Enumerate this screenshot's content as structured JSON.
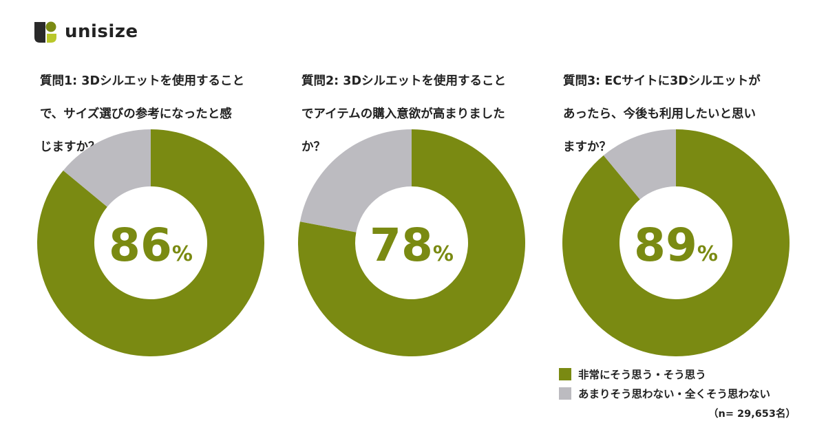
{
  "brand": {
    "name": "unisize",
    "logo_icon": "unisize-logo-icon"
  },
  "colors": {
    "agree": "#7a8a12",
    "disagree": "#bcbbc0",
    "text": "#222222"
  },
  "chart_data": [
    {
      "type": "pie",
      "title": "質問1: 3Dシルエットを使用することで、サイズ選びの参考になったと感じますか？",
      "title_lines": [
        "質問1: 3Dシルエットを使用すること",
        "で、サイズ選びの参考になったと感",
        "じますか？"
      ],
      "categories": [
        "非常にそう思う・そう思う",
        "あまりそう思わない・全くそう思わない"
      ],
      "values": [
        86,
        14
      ],
      "center_label": {
        "value": "86",
        "unit": "%"
      }
    },
    {
      "type": "pie",
      "title": "質問2: 3Dシルエットを使用することでアイテムの購入意欲が高まりましたか？",
      "title_lines": [
        "質問2: 3Dシルエットを使用すること",
        "でアイテムの購入意欲が高まりました",
        "か？"
      ],
      "categories": [
        "非常にそう思う・そう思う",
        "あまりそう思わない・全くそう思わない"
      ],
      "values": [
        78,
        22
      ],
      "center_label": {
        "value": "78",
        "unit": "%"
      }
    },
    {
      "type": "pie",
      "title": "質問3: ECサイトに3Dシルエットがあったら、今後も利用したいと思いますか？",
      "title_lines": [
        "質問3: ECサイトに3Dシルエットが",
        "あったら、今後も利用したいと思い",
        "ますか？"
      ],
      "categories": [
        "非常にそう思う・そう思う",
        "あまりそう思わない・全くそう思わない"
      ],
      "values": [
        89,
        11
      ],
      "center_label": {
        "value": "89",
        "unit": "%"
      }
    }
  ],
  "legend": {
    "placement": "bottom-right",
    "items": [
      {
        "label": "非常にそう思う・そう思う",
        "color": "#7a8a12"
      },
      {
        "label": "あまりそう思わない・全くそう思わない",
        "color": "#bcbbc0"
      }
    ]
  },
  "sample_note": "（n= 29,653名）"
}
